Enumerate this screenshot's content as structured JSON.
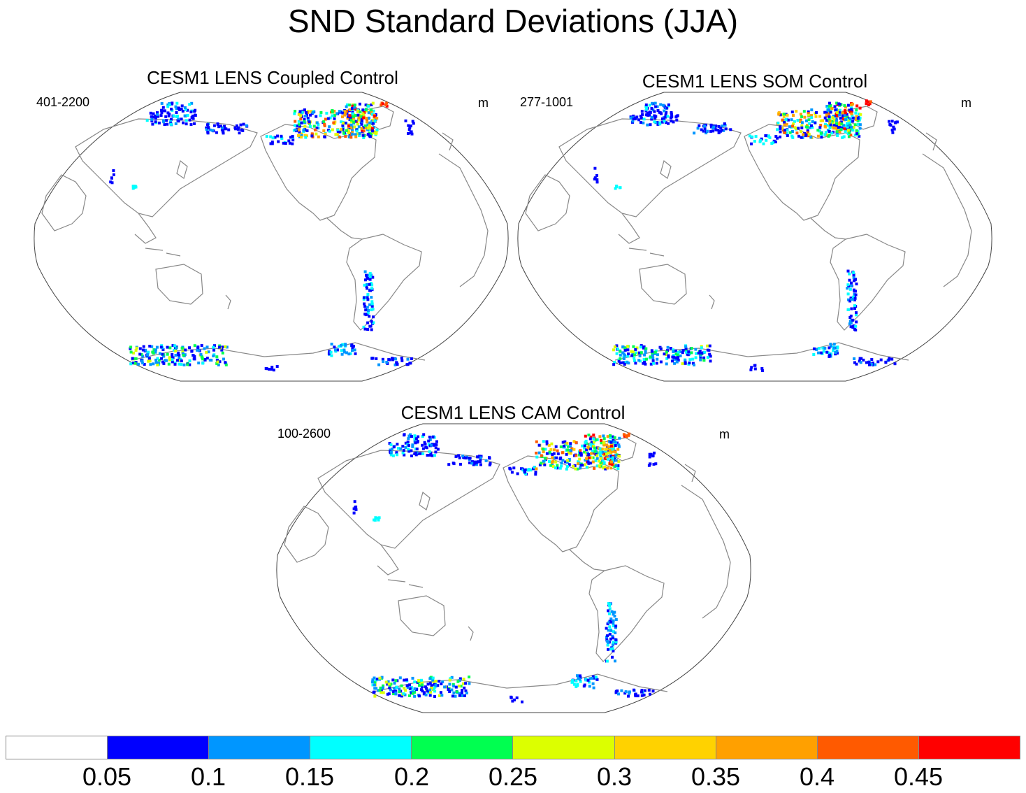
{
  "title": "SND Standard Deviations (JJA)",
  "panels": [
    {
      "title": "CESM1 LENS Coupled Control",
      "range": "401-2200",
      "units": "m"
    },
    {
      "title": "CESM1 LENS SOM Control",
      "range": "277-1001",
      "units": "m"
    },
    {
      "title": "CESM1 LENS CAM Control",
      "range": "100-2600",
      "units": "m"
    }
  ],
  "colorbar": {
    "colors": [
      "#ffffff",
      "#0000ff",
      "#0096ff",
      "#00ffff",
      "#00ff50",
      "#dcff00",
      "#ffd200",
      "#ffa000",
      "#ff5a00",
      "#ff0000"
    ],
    "labels": [
      "0.05",
      "0.1",
      "0.15",
      "0.2",
      "0.25",
      "0.3",
      "0.35",
      "0.4",
      "0.45"
    ]
  },
  "colors": {
    "coast": "#888888",
    "outline": "#444444"
  }
}
